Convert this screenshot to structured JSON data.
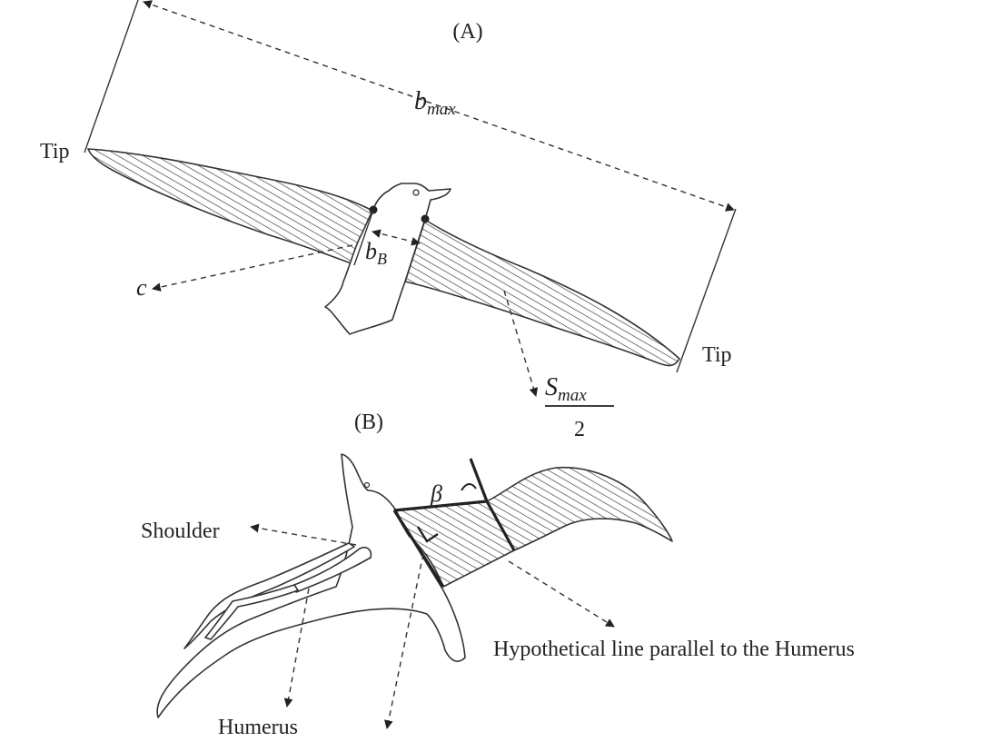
{
  "panel_a": {
    "label": "(A)",
    "bmax_base": "b",
    "bmax_sub": "max",
    "tip_left": "Tip",
    "tip_right": "Tip",
    "bB_base": "b",
    "bB_sub": "B",
    "c_label": "c",
    "smax_base": "S",
    "smax_sub": "max",
    "smax_denominator": "2"
  },
  "panel_b": {
    "label": "(B)",
    "beta": "β",
    "shoulder": "Shoulder",
    "humerus": "Humerus",
    "hypothetical_line": "Hypothetical line parallel to the Humerus"
  }
}
